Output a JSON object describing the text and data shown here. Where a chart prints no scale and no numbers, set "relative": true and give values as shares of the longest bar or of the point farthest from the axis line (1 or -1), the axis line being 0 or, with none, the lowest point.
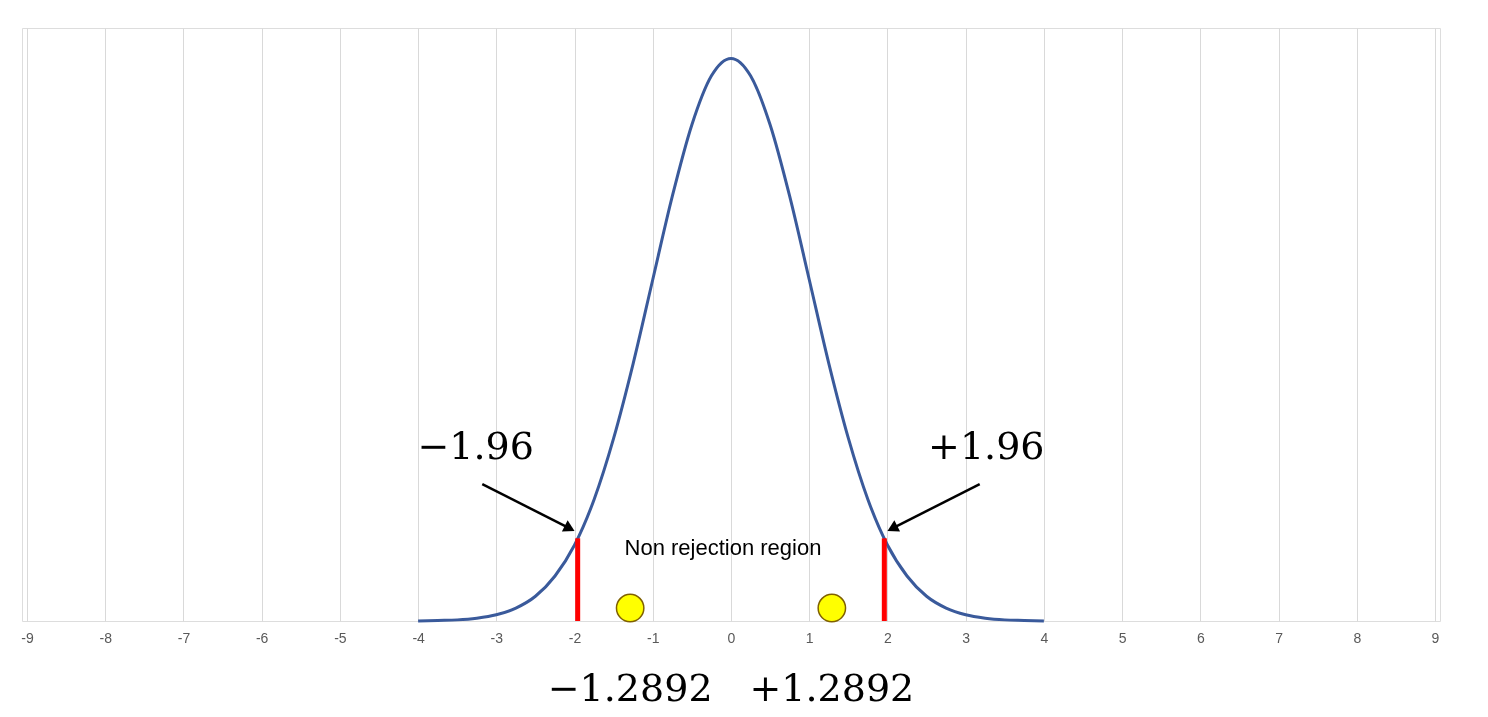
{
  "chart_data": {
    "type": "line",
    "relative": true,
    "xlim": [
      -9,
      9
    ],
    "xticks": [
      -9,
      -8,
      -7,
      -6,
      -5,
      -4,
      -3,
      -2,
      -1,
      0,
      1,
      2,
      3,
      4,
      5,
      6,
      7,
      8,
      9
    ],
    "grid": "x",
    "series": [
      {
        "color": "#3a5a9b",
        "marker": "none",
        "x": [
          -4,
          -3.75,
          -3.5,
          -3.25,
          -3,
          -2.75,
          -2.5,
          -2.25,
          -2,
          -1.75,
          -1.5,
          -1.25,
          -1,
          -0.75,
          -0.5,
          -0.25,
          0,
          0.25,
          0.5,
          0.75,
          1,
          1.25,
          1.5,
          1.75,
          2,
          2.25,
          2.5,
          2.75,
          3,
          3.25,
          3.5,
          3.75,
          4
        ],
        "values": [
          0.0,
          0.001,
          0.002,
          0.005,
          0.011,
          0.023,
          0.044,
          0.08,
          0.135,
          0.216,
          0.325,
          0.458,
          0.607,
          0.755,
          0.882,
          0.969,
          1,
          0.969,
          0.882,
          0.755,
          0.607,
          0.458,
          0.325,
          0.216,
          0.135,
          0.08,
          0.044,
          0.023,
          0.011,
          0.005,
          0.002,
          0.001,
          0.0
        ]
      },
      {
        "type": "bar",
        "color": "#ff0000",
        "x": [
          -1.96,
          1.96
        ],
        "values": [
          0.147,
          0.147
        ]
      },
      {
        "type": "scatter",
        "color": "#ffff00",
        "marker": "circle",
        "x": [
          -1.2892,
          1.2892
        ],
        "values": [
          0.023,
          0.023
        ]
      }
    ],
    "annotations": [
      {
        "text": "−1.96",
        "x": -1.96,
        "y": 0.147
      },
      {
        "text": "+1.96",
        "x": 1.96,
        "y": 0.147
      },
      "Non rejection region",
      {
        "text": "−1.2892",
        "x": -1.2892,
        "y": 0.023
      },
      {
        "text": "+1.2892",
        "x": 1.2892,
        "y": 0.023
      }
    ]
  }
}
